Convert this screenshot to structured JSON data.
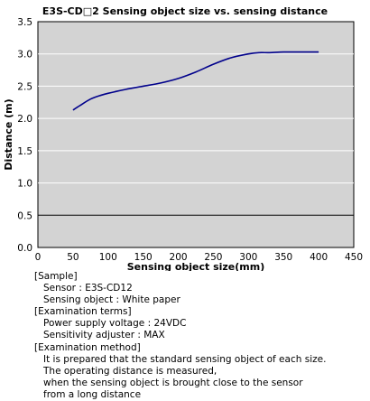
{
  "chart_data": {
    "type": "line",
    "title": "E3S-CD□2   Sensing object size vs. sensing distance",
    "xlabel": "Sensing object size(mm)",
    "ylabel": "Distance (m)",
    "xlim": [
      0,
      450
    ],
    "ylim": [
      0,
      3.5
    ],
    "x_ticks": [
      "0",
      "50",
      "100",
      "150",
      "200",
      "250",
      "300",
      "350",
      "400",
      "450"
    ],
    "y_ticks": [
      "0.0",
      "0.5",
      "1.0",
      "1.5",
      "2.0",
      "2.5",
      "3.0",
      "3.5"
    ],
    "highlight_gridline_y": 0.5,
    "grid": "horizontal",
    "background": "#d3d3d3",
    "line_color": "#00008b",
    "series": [
      {
        "x": [
          50,
          60,
          75,
          90,
          100,
          125,
          150,
          175,
          200,
          225,
          250,
          275,
          300,
          315,
          330,
          350,
          375,
          400
        ],
        "y": [
          2.13,
          2.2,
          2.3,
          2.36,
          2.39,
          2.45,
          2.5,
          2.55,
          2.62,
          2.72,
          2.84,
          2.94,
          3.0,
          3.02,
          3.02,
          3.03,
          3.03,
          3.03
        ]
      }
    ]
  },
  "notes": {
    "sample_header": "[Sample]",
    "sensor": "Sensor : E3S-CD12",
    "sensing_object": "Sensing object : White paper",
    "terms_header": "[Examination terms]",
    "voltage": "Power supply voltage : 24VDC",
    "adjuster": "Sensitivity adjuster : MAX",
    "method_header": "[Examination method]",
    "method_1": "It is prepared that the standard sensing object of each size.",
    "method_2": "The operating distance is measured,",
    "method_3": "when the sensing object is brought close to the sensor",
    "method_4": "from a long distance"
  }
}
